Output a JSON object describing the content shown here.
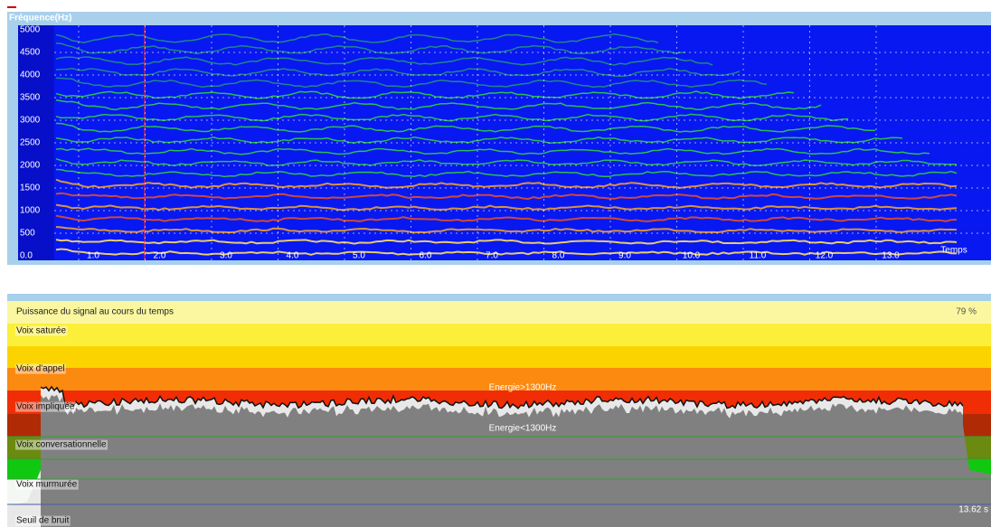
{
  "spectrogram": {
    "title": "Fréquence(Hz)",
    "y_labels": [
      "5000",
      "4500",
      "4000",
      "3500",
      "3000",
      "2500",
      "2000",
      "1500",
      "1000",
      "500",
      "0.0"
    ],
    "x_labels": [
      "1.0",
      "2.0",
      "3.0",
      "4.0",
      "5.0",
      "6.0",
      "7.0",
      "8.0",
      "9.0",
      "10.0",
      "11.0",
      "12.0",
      "13.0"
    ],
    "x_axis_label": "Temps"
  },
  "power": {
    "title": "Puissance du signal au cours du temps",
    "percent": "79 %",
    "zones": [
      "Voix saturée",
      "Voix d'appel",
      "Voix impliquée",
      "Voix conversationnelle",
      "Voix murmurée",
      "Seuil de bruit"
    ],
    "high_label": "Energie>1300Hz",
    "low_label": "Energie<1300Hz",
    "duration": "13.62 s"
  }
}
